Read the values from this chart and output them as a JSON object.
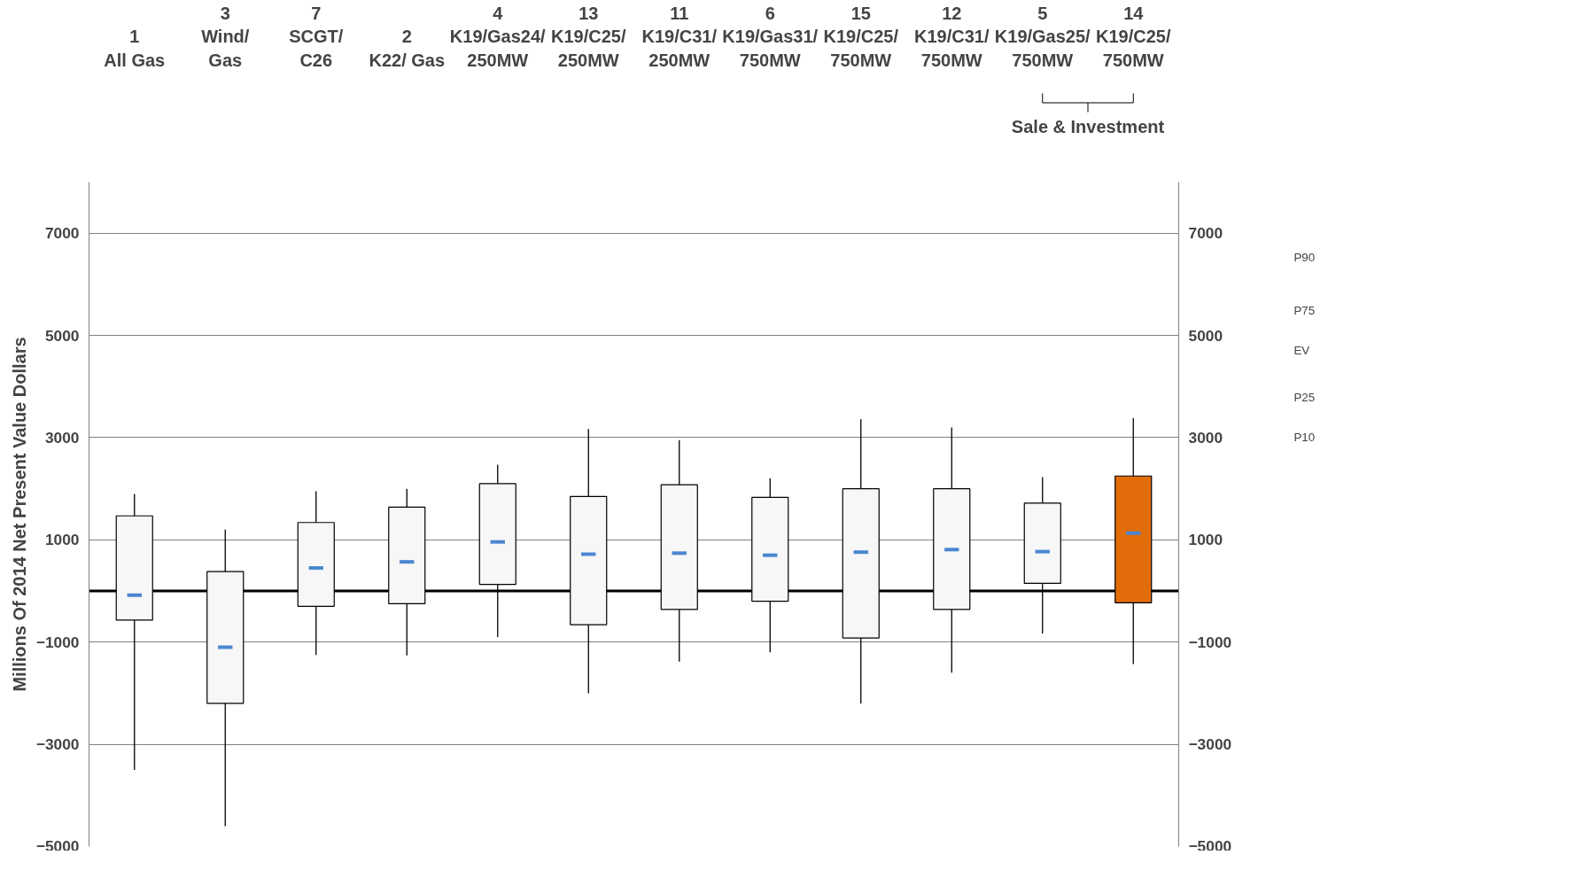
{
  "chart_data": {
    "type": "box",
    "ylabel": "Millions Of 2014 Net Present Value Dollars",
    "categories": [
      "1\nAll Gas",
      "3\nWind/\nGas",
      "7\nSCGT/\nC26",
      "2\nK22/ Gas",
      "4\nK19/Gas24/\n250MW",
      "13\nK19/C25/\n250MW",
      "11\nK19/C31/\n250MW",
      "6\nK19/Gas31/\n750MW",
      "15\nK19/C25/\n750MW",
      "12\nK19/C31/\n750MW",
      "5\nK19/Gas25/\n750MW",
      "14\nK19/C25/\n750MW"
    ],
    "boxes": [
      {
        "low": -3500,
        "q1": -570,
        "q3": 1470,
        "high": 1900,
        "median": -80
      },
      {
        "low": -4600,
        "q1": -2200,
        "q3": 380,
        "high": 1200,
        "median": -1100
      },
      {
        "low": -1250,
        "q1": -300,
        "q3": 1340,
        "high": 1950,
        "median": 450
      },
      {
        "low": -1260,
        "q1": -250,
        "q3": 1640,
        "high": 2000,
        "median": 570
      },
      {
        "low": -900,
        "q1": 130,
        "q3": 2100,
        "high": 2470,
        "median": 960
      },
      {
        "low": -2000,
        "q1": -660,
        "q3": 1850,
        "high": 3170,
        "median": 720
      },
      {
        "low": -1380,
        "q1": -360,
        "q3": 2080,
        "high": 2950,
        "median": 740
      },
      {
        "low": -1200,
        "q1": -200,
        "q3": 1830,
        "high": 2200,
        "median": 700
      },
      {
        "low": -2200,
        "q1": -920,
        "q3": 2000,
        "high": 3360,
        "median": 760
      },
      {
        "low": -1600,
        "q1": -360,
        "q3": 2000,
        "high": 3200,
        "median": 810
      },
      {
        "low": -830,
        "q1": 150,
        "q3": 1720,
        "high": 2230,
        "median": 770
      },
      {
        "low": -1430,
        "q1": -230,
        "q3": 2250,
        "high": 3380,
        "median": 1130
      }
    ],
    "colors": [
      "#f7f7f7",
      "#f7f7f7",
      "#f7f7f7",
      "#f7f7f7",
      "#f7f7f7",
      "#f7f7f7",
      "#f7f7f7",
      "#f7f7f7",
      "#f7f7f7",
      "#f7f7f7",
      "#f7f7f7",
      "#e36c0a"
    ],
    "ylim": [
      -5000,
      8000
    ],
    "yticks": [
      -5000,
      -3000,
      -1000,
      1000,
      3000,
      5000,
      7000
    ],
    "y2lim": [
      -5000,
      8000
    ],
    "y2ticks": [
      -5000,
      -3000,
      -1000,
      1000,
      3000,
      5000,
      7000
    ],
    "grid": "y",
    "ref_lines": [
      {
        "axis": "y",
        "value": 0,
        "color": "#000000"
      }
    ],
    "annotations": [
      "Sale & Investment",
      "P90",
      "P75",
      "EV",
      "P25",
      "P10"
    ]
  }
}
